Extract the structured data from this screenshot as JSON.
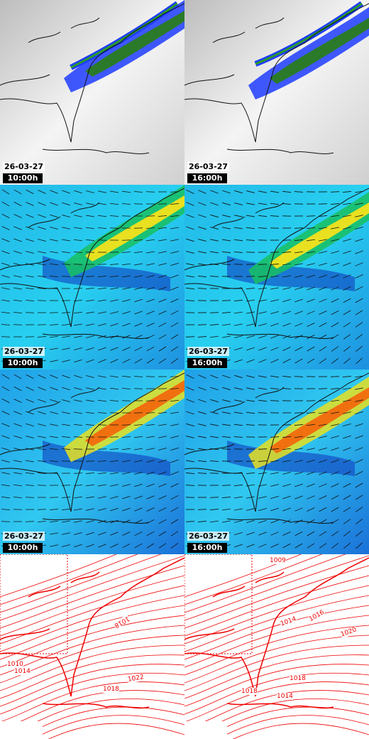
{
  "rows": [
    {
      "panels": [
        {
          "date": "26-03-27",
          "time": "10:00h"
        },
        {
          "date": "26-03-27",
          "time": "16:00h"
        }
      ]
    },
    {
      "panels": [
        {
          "date": "26-03-27",
          "time": "10:00h"
        },
        {
          "date": "26-03-27",
          "time": "16:00h"
        }
      ]
    },
    {
      "panels": [
        {
          "date": "26-03-27",
          "time": "10:00h"
        },
        {
          "date": "26-03-27",
          "time": "16:00h"
        }
      ]
    },
    {
      "panels": [
        {
          "isobar_labels": [
            "1018",
            "1014",
            "1022",
            "1018",
            "1010"
          ]
        },
        {
          "isobar_labels": [
            "1014",
            "1016",
            "1020",
            "1018",
            "1018",
            "1014",
            "1009"
          ]
        }
      ]
    }
  ]
}
